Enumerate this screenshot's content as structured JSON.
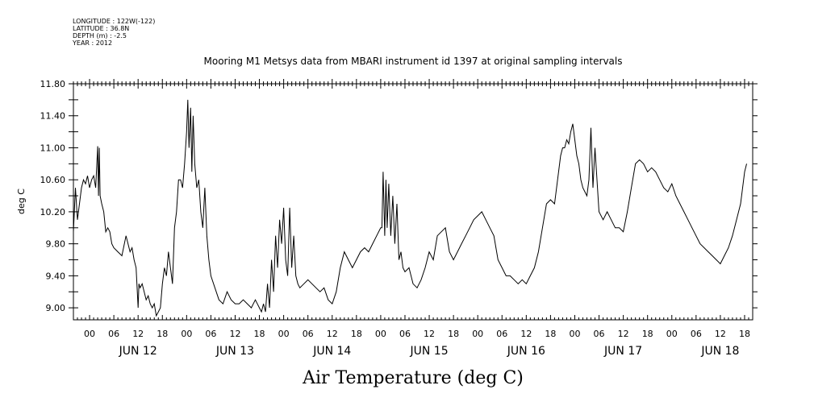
{
  "metadata": [
    "LONGITUDE : 122W(-122)",
    "LATITUDE : 36.8N",
    "DEPTH (m) : -2.5",
    "YEAR : 2012"
  ],
  "chart_data": {
    "type": "line",
    "title": "Mooring M1 Metsys data from MBARI instrument id 1397 at original sampling intervals",
    "xlabel": "Air Temperature (deg C)",
    "ylabel": "deg C",
    "ylim": [
      8.85,
      11.8
    ],
    "yticks": [
      "11.80",
      "11.40",
      "11.00",
      "10.60",
      "10.20",
      "9.80",
      "9.40",
      "9.00"
    ],
    "xlim_hours": [
      -4,
      164
    ],
    "hour_tick_labels": [
      "00",
      "06",
      "12",
      "18"
    ],
    "day_labels": [
      "JUN 12",
      "JUN 13",
      "JUN 14",
      "JUN 15",
      "JUN 16",
      "JUN 17",
      "JUN 18"
    ],
    "grid": false,
    "series": [
      {
        "x_hours_from_jun12_00": [
          -4,
          -3.5,
          -3,
          -2.5,
          -2,
          -1.5,
          -1,
          -0.5,
          0,
          0.5,
          1,
          1.5,
          2,
          2.2,
          2.4,
          2.6,
          3,
          3.5,
          4,
          4.5,
          5,
          5.5,
          6,
          7,
          8,
          9,
          9.5,
          10,
          10.5,
          11,
          11.5,
          12,
          12.2,
          12.5,
          13,
          13.5,
          14,
          14.5,
          15,
          15.5,
          16,
          16.5,
          17,
          17.5,
          18,
          18.5,
          19,
          19.5,
          20,
          20.5,
          21,
          21.5,
          22,
          22.5,
          23,
          23.5,
          24,
          24.3,
          24.6,
          25,
          25.3,
          25.6,
          26,
          26.5,
          27,
          27.5,
          28,
          28.5,
          29,
          29.5,
          30,
          31,
          32,
          33,
          34,
          35,
          36,
          37,
          38,
          39,
          40,
          41,
          42,
          42.5,
          43,
          43.5,
          44,
          44.5,
          45,
          45.5,
          46,
          46.5,
          47,
          47.5,
          48,
          48.5,
          49,
          49.5,
          50,
          50.5,
          51,
          51.5,
          52,
          53,
          54,
          55,
          56,
          57,
          58,
          59,
          60,
          61,
          62,
          63,
          64,
          65,
          66,
          67,
          68,
          69,
          70,
          71,
          72,
          72.3,
          72.6,
          73,
          73.3,
          73.6,
          74,
          74.5,
          75,
          75.5,
          76,
          76.5,
          77,
          77.5,
          78,
          79,
          80,
          81,
          82,
          83,
          84,
          85,
          86,
          87,
          88,
          89,
          90,
          91,
          92,
          93,
          94,
          95,
          96,
          97,
          98,
          99,
          100,
          101,
          102,
          103,
          104,
          105,
          106,
          107,
          108,
          109,
          110,
          111,
          112,
          113,
          114,
          115,
          116,
          116.5,
          117,
          117.5,
          118,
          118.5,
          119,
          119.5,
          120,
          120.5,
          121,
          121.5,
          122,
          122.5,
          123,
          123.5,
          124,
          124.5,
          125,
          126,
          127,
          128,
          129,
          130,
          131,
          132,
          133,
          134,
          135,
          136,
          137,
          138,
          139,
          140,
          141,
          142,
          143,
          144,
          145,
          146,
          147,
          148,
          149,
          150,
          151,
          152,
          153,
          154,
          155,
          156,
          157,
          158,
          159,
          160,
          161,
          162,
          162.5,
          163
        ],
        "values": [
          9.95,
          10.5,
          10.1,
          10.3,
          10.5,
          10.6,
          10.55,
          10.65,
          10.5,
          10.6,
          10.65,
          10.5,
          11.02,
          10.4,
          11.0,
          10.4,
          10.3,
          10.2,
          9.95,
          10.0,
          9.95,
          9.8,
          9.75,
          9.7,
          9.65,
          9.9,
          9.8,
          9.7,
          9.75,
          9.6,
          9.5,
          9.0,
          9.3,
          9.25,
          9.3,
          9.2,
          9.1,
          9.15,
          9.05,
          9.0,
          9.05,
          8.9,
          8.95,
          9.0,
          9.3,
          9.5,
          9.4,
          9.7,
          9.5,
          9.3,
          10.0,
          10.2,
          10.6,
          10.6,
          10.5,
          10.8,
          11.2,
          11.6,
          11.0,
          11.5,
          10.7,
          11.4,
          10.8,
          10.5,
          10.6,
          10.2,
          10.0,
          10.5,
          9.9,
          9.6,
          9.4,
          9.25,
          9.1,
          9.05,
          9.2,
          9.1,
          9.05,
          9.05,
          9.1,
          9.05,
          9.0,
          9.1,
          9.0,
          8.95,
          9.05,
          8.95,
          9.3,
          9.0,
          9.6,
          9.2,
          9.9,
          9.5,
          10.1,
          9.8,
          10.25,
          9.6,
          9.4,
          10.25,
          9.5,
          9.9,
          9.4,
          9.3,
          9.25,
          9.3,
          9.35,
          9.3,
          9.25,
          9.2,
          9.25,
          9.1,
          9.05,
          9.2,
          9.5,
          9.7,
          9.6,
          9.5,
          9.6,
          9.7,
          9.75,
          9.7,
          9.8,
          9.9,
          10.0,
          10.0,
          10.7,
          9.9,
          10.6,
          10.0,
          10.55,
          9.9,
          10.4,
          9.8,
          10.3,
          9.6,
          9.7,
          9.5,
          9.45,
          9.5,
          9.3,
          9.25,
          9.35,
          9.5,
          9.7,
          9.6,
          9.9,
          9.95,
          10.0,
          9.7,
          9.6,
          9.7,
          9.8,
          9.9,
          10.0,
          10.1,
          10.15,
          10.2,
          10.1,
          10.0,
          9.9,
          9.6,
          9.5,
          9.4,
          9.4,
          9.35,
          9.3,
          9.35,
          9.3,
          9.4,
          9.5,
          9.7,
          10.0,
          10.3,
          10.35,
          10.3,
          10.7,
          10.9,
          11.0,
          11.0,
          11.1,
          11.05,
          11.2,
          11.3,
          11.1,
          10.9,
          10.8,
          10.6,
          10.5,
          10.45,
          10.4,
          10.6,
          11.25,
          10.5,
          11.0,
          10.2,
          10.1,
          10.2,
          10.1,
          10.0,
          10.0,
          9.95,
          10.2,
          10.5,
          10.8,
          10.85,
          10.8,
          10.7,
          10.75,
          10.7,
          10.6,
          10.5,
          10.45,
          10.55,
          10.4,
          10.3,
          10.2,
          10.1,
          10.0,
          9.9,
          9.8,
          9.75,
          9.7,
          9.65,
          9.6,
          9.55,
          9.65,
          9.75,
          9.9,
          10.1,
          10.3,
          10.7,
          10.8
        ]
      }
    ]
  }
}
